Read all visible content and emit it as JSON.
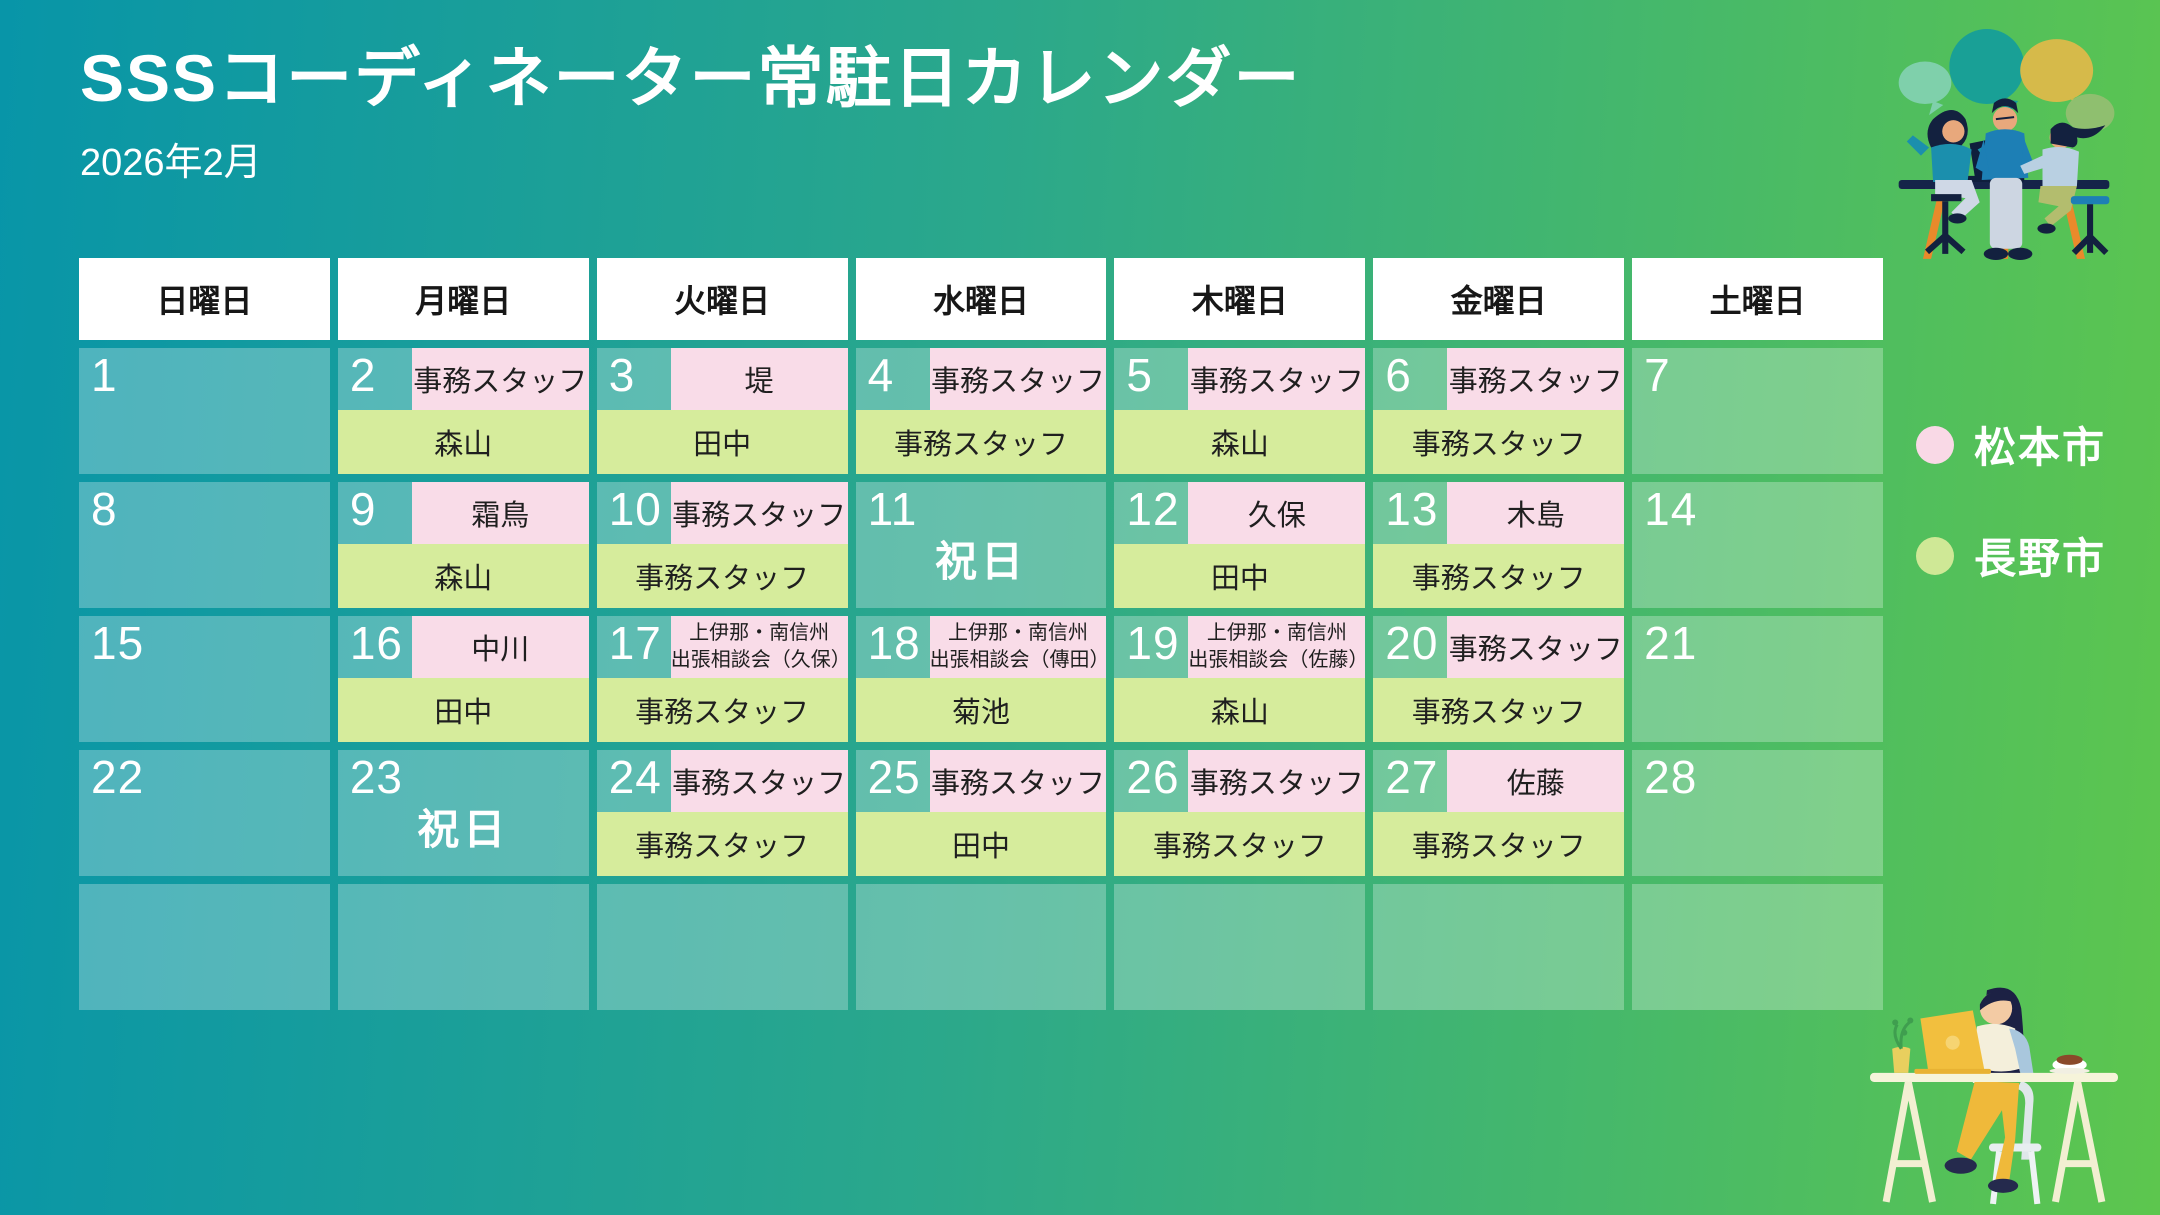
{
  "page": {
    "title": "SSSコーディネーター常駐日カレンダー",
    "subtitle": "2026年2月"
  },
  "legend": {
    "items": [
      {
        "label": "松本市",
        "color": "#f9d9e6"
      },
      {
        "label": "長野市",
        "color": "#cfe896"
      }
    ]
  },
  "colors": {
    "background_left": "#0895a8",
    "background_right": "#5dc64e",
    "matsumoto_pink": "#f9dce8",
    "nagano_green": "#d6ec9c",
    "weekday_header_bg": "#ffffff",
    "day_number_text": "#ffffff",
    "label_text": "#1f1f1f"
  },
  "illustrations": {
    "top_right": "people-meeting-illustration",
    "bottom_right": "woman-at-desk-illustration"
  },
  "calendar": {
    "weekday_headers": [
      "日曜日",
      "月曜日",
      "火曜日",
      "水曜日",
      "木曜日",
      "金曜日",
      "土曜日"
    ],
    "weeks": [
      [
        {
          "day": "1"
        },
        {
          "day": "2",
          "matsumoto": "事務スタッフ",
          "nagano": "森山"
        },
        {
          "day": "3",
          "matsumoto": "堤",
          "nagano": "田中"
        },
        {
          "day": "4",
          "matsumoto": "事務スタッフ",
          "nagano": "事務スタッフ"
        },
        {
          "day": "5",
          "matsumoto": "事務スタッフ",
          "nagano": "森山"
        },
        {
          "day": "6",
          "matsumoto": "事務スタッフ",
          "nagano": "事務スタッフ"
        },
        {
          "day": "7"
        }
      ],
      [
        {
          "day": "8"
        },
        {
          "day": "9",
          "matsumoto": "霜鳥",
          "nagano": "森山"
        },
        {
          "day": "10",
          "matsumoto": "事務スタッフ",
          "nagano": "事務スタッフ"
        },
        {
          "day": "11",
          "holiday": "祝日"
        },
        {
          "day": "12",
          "matsumoto": "久保",
          "nagano": "田中"
        },
        {
          "day": "13",
          "matsumoto": "木島",
          "nagano": "事務スタッフ"
        },
        {
          "day": "14"
        }
      ],
      [
        {
          "day": "15"
        },
        {
          "day": "16",
          "matsumoto": "中川",
          "nagano": "田中"
        },
        {
          "day": "17",
          "matsumoto": "上伊那・南信州\n出張相談会（久保）",
          "matsumoto_small": true,
          "nagano": "事務スタッフ"
        },
        {
          "day": "18",
          "matsumoto": "上伊那・南信州\n出張相談会（傳田）",
          "matsumoto_small": true,
          "nagano": "菊池"
        },
        {
          "day": "19",
          "matsumoto": "上伊那・南信州\n出張相談会（佐藤）",
          "matsumoto_small": true,
          "nagano": "森山"
        },
        {
          "day": "20",
          "matsumoto": "事務スタッフ",
          "nagano": "事務スタッフ"
        },
        {
          "day": "21"
        }
      ],
      [
        {
          "day": "22"
        },
        {
          "day": "23",
          "holiday": "祝日"
        },
        {
          "day": "24",
          "matsumoto": "事務スタッフ",
          "nagano": "事務スタッフ"
        },
        {
          "day": "25",
          "matsumoto": "事務スタッフ",
          "nagano": "田中"
        },
        {
          "day": "26",
          "matsumoto": "事務スタッフ",
          "nagano": "事務スタッフ"
        },
        {
          "day": "27",
          "matsumoto": "佐藤",
          "nagano": "事務スタッフ"
        },
        {
          "day": "28"
        }
      ],
      [
        {},
        {},
        {},
        {},
        {},
        {},
        {}
      ]
    ]
  }
}
